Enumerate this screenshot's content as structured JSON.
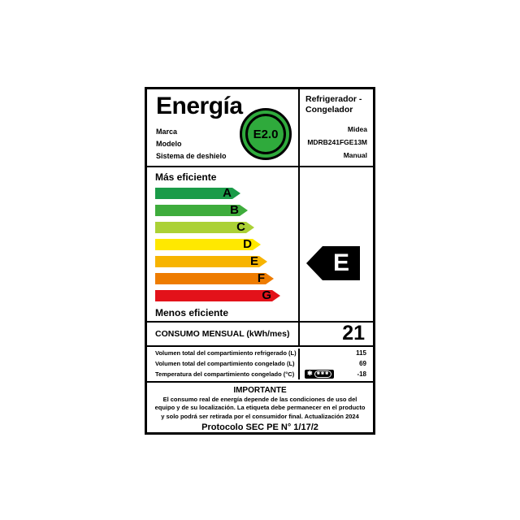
{
  "header": {
    "title": "Energía",
    "fields": [
      "Marca",
      "Modelo",
      "Sistema de deshielo"
    ],
    "appliance_type": "Refrigerador - Congelador",
    "brand": "Midea",
    "model": "MDRB241FGE13M",
    "defrost_system": "Manual",
    "badge_text": "E2.0",
    "badge_color": "#2faa3c"
  },
  "scale": {
    "top_label": "Más eficiente",
    "bottom_label": "Menos eficiente",
    "arrows": [
      {
        "letter": "A",
        "color": "#1a9b48",
        "width": 105
      },
      {
        "letter": "B",
        "color": "#3eac3c",
        "width": 114
      },
      {
        "letter": "C",
        "color": "#abd136",
        "width": 122
      },
      {
        "letter": "D",
        "color": "#ffe800",
        "width": 130
      },
      {
        "letter": "E",
        "color": "#f7b400",
        "width": 138
      },
      {
        "letter": "F",
        "color": "#ee7c00",
        "width": 146
      },
      {
        "letter": "G",
        "color": "#e3121a",
        "width": 154
      }
    ],
    "rating_letter": "E",
    "rating_color": "#000000"
  },
  "consumption": {
    "label": "CONSUMO MENSUAL (kWh/mes)",
    "value": "21"
  },
  "details": {
    "rows": [
      {
        "label": "Volumen total del compartimiento refrigerado (L)",
        "value": "115"
      },
      {
        "label": "Volumen total del compartimiento congelado (L)",
        "value": "69"
      },
      {
        "label": "Temperatura del compartimiento congelado (°C)",
        "value": "-18"
      }
    ],
    "freezer_symbol": {
      "star": "✱",
      "stars": "✱✱✱"
    }
  },
  "important": {
    "title": "IMPORTANTE",
    "body": "El consumo real de energía depende de las condiciones de uso del equipo y de su localización. La etiqueta debe permanecer en el producto y solo podrá ser retirada por el consumidor final. Actualización 2024",
    "protocol": "Protocolo SEC PE N° 1/17/2"
  }
}
